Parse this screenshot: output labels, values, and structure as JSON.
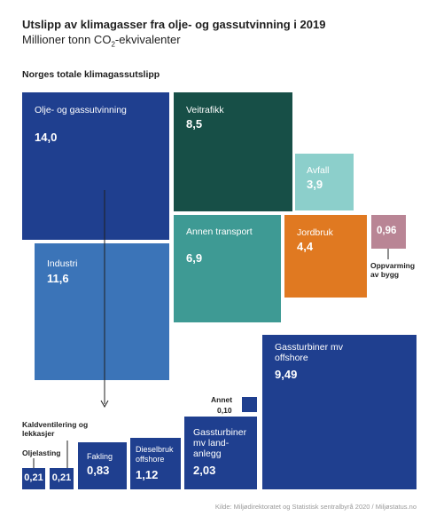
{
  "title": "Utslipp av klimagasser fra olje- og gassutvinning i 2019",
  "subtitle_pre": "Millioner tonn CO",
  "subtitle_sub": "2",
  "subtitle_post": "-ekvivalenter",
  "section_label": "Norges totale klimagassutslipp",
  "source": "Kilde: Miljødirektoratet og Statistisk sentralbyrå 2020 / Miljøstatus.no",
  "colors": {
    "navy": "#1f3f8f",
    "mid_blue": "#3b74b8",
    "dark_green": "#174f47",
    "teal": "#3e9a94",
    "light_teal": "#8ccfcb",
    "orange": "#e07921",
    "mauve": "#b98595"
  },
  "chart_data": {
    "type": "treemap",
    "title": "Utslipp av klimagasser fra olje- og gassutvinning i 2019",
    "unit": "Millioner tonn CO2-ekvivalenter",
    "total_label": "Norges totale klimagassutslipp",
    "sectors": [
      {
        "label": "Olje- og gassutvinning",
        "value": "14,0"
      },
      {
        "label": "Industri",
        "value": "11,6"
      },
      {
        "label": "Veitrafikk",
        "value": "8,5"
      },
      {
        "label": "Annen transport",
        "value": "6,9"
      },
      {
        "label": "Jordbruk",
        "value": "4,4"
      },
      {
        "label": "Avfall",
        "value": "3,9"
      },
      {
        "label": "Oppvarming av bygg",
        "value": "0,96"
      }
    ],
    "oil_gas_breakdown": [
      {
        "label": "Gassturbiner mv offshore",
        "value": "9,49"
      },
      {
        "label": "Gassturbiner mv land-anlegg",
        "value": "2,03"
      },
      {
        "label": "Dieselbruk offshore",
        "value": "1,12"
      },
      {
        "label": "Fakling",
        "value": "0,83"
      },
      {
        "label": "Oljelasting",
        "value": "0,21"
      },
      {
        "label": "Kaldventilering og lekkasjer",
        "value": "0,21"
      },
      {
        "label": "Annet",
        "value": "0,10"
      }
    ]
  }
}
